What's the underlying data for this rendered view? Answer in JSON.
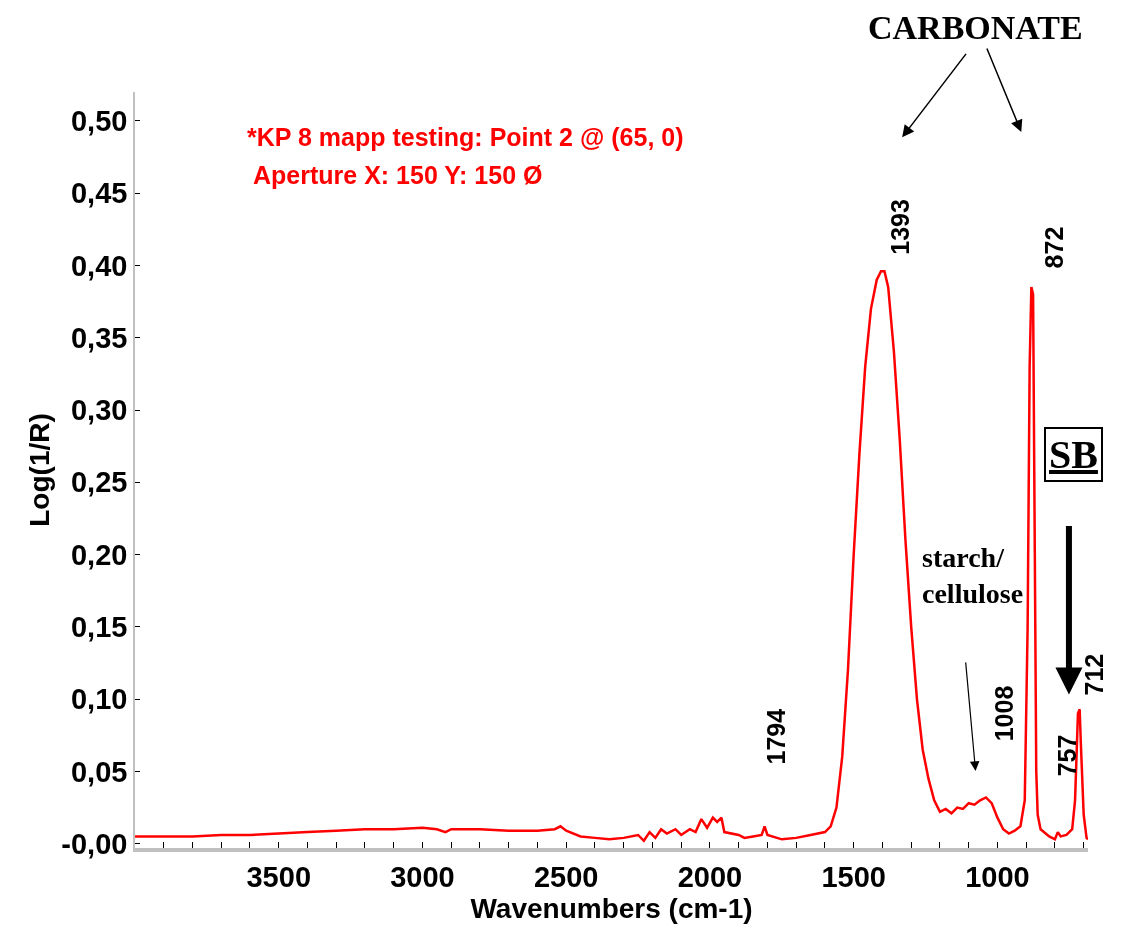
{
  "chart_data": {
    "type": "line",
    "title": "*KP 8 mapp testing: Point 2 @ (65, 0)",
    "subtitle": "Aperture X: 150 Y: 150 Ø",
    "xlabel": "Wavenumbers (cm-1)",
    "ylabel": "Log(1/R)",
    "xlim": [
      4000,
      685
    ],
    "ylim": [
      -0.003,
      0.52
    ],
    "grid": false,
    "marker": "none",
    "line_style": "solid",
    "xticks": [
      {
        "value": 3900,
        "label": null
      },
      {
        "value": 3800,
        "label": null
      },
      {
        "value": 3700,
        "label": null
      },
      {
        "value": 3600,
        "label": null
      },
      3500,
      {
        "value": 3400,
        "label": null
      },
      {
        "value": 3300,
        "label": null
      },
      {
        "value": 3200,
        "label": null
      },
      {
        "value": 3100,
        "label": null
      },
      3000,
      {
        "value": 2900,
        "label": null
      },
      {
        "value": 2800,
        "label": null
      },
      {
        "value": 2700,
        "label": null
      },
      {
        "value": 2600,
        "label": null
      },
      2500,
      {
        "value": 2400,
        "label": null
      },
      {
        "value": 2300,
        "label": null
      },
      {
        "value": 2200,
        "label": null
      },
      {
        "value": 2100,
        "label": null
      },
      2000,
      {
        "value": 1900,
        "label": null
      },
      {
        "value": 1800,
        "label": null
      },
      {
        "value": 1700,
        "label": null
      },
      {
        "value": 1600,
        "label": null
      },
      1500,
      {
        "value": 1400,
        "label": null
      },
      {
        "value": 1300,
        "label": null
      },
      {
        "value": 1200,
        "label": null
      },
      {
        "value": 1100,
        "label": null
      },
      1000,
      {
        "value": 900,
        "label": null
      },
      {
        "value": 800,
        "label": null
      },
      {
        "value": 700,
        "label": null
      }
    ],
    "yticks": [
      {
        "value": 0,
        "label": "-0,00"
      },
      {
        "value": 0.05,
        "label": "0,05"
      },
      {
        "value": 0.1,
        "label": "0,10"
      },
      {
        "value": 0.15,
        "label": "0,15"
      },
      {
        "value": 0.2,
        "label": "0,20"
      },
      {
        "value": 0.25,
        "label": "0,25"
      },
      {
        "value": 0.3,
        "label": "0,30"
      },
      {
        "value": 0.35,
        "label": "0,35"
      },
      {
        "value": 0.4,
        "label": "0,40"
      },
      {
        "value": 0.45,
        "label": "0,45"
      },
      {
        "value": 0.5,
        "label": "0,50"
      }
    ],
    "annotations": [
      "CARBONATE",
      "starch/\ncellulose",
      "SB",
      {
        "text": "1393",
        "x": 1393,
        "y": 0.396
      },
      {
        "text": "872",
        "x": 872,
        "y": 0.385
      },
      {
        "text": "1794",
        "x": 1794,
        "y": 0.012
      },
      {
        "text": "1008",
        "x": 1008,
        "y": 0.028
      },
      {
        "text": "757",
        "x": 757,
        "y": 0.006
      },
      {
        "text": "712",
        "x": 712,
        "y": 0.093
      }
    ],
    "series": [
      {
        "color": "#ff0000",
        "x": [
          4000,
          3900,
          3800,
          3700,
          3600,
          3500,
          3400,
          3300,
          3200,
          3100,
          3000,
          2950,
          2920,
          2900,
          2800,
          2700,
          2600,
          2540,
          2520,
          2500,
          2450,
          2400,
          2350,
          2300,
          2250,
          2230,
          2210,
          2190,
          2170,
          2150,
          2120,
          2100,
          2070,
          2050,
          2030,
          2010,
          1990,
          1975,
          1960,
          1950,
          1900,
          1880,
          1850,
          1820,
          1810,
          1800,
          1750,
          1700,
          1650,
          1600,
          1580,
          1560,
          1540,
          1520,
          1500,
          1480,
          1460,
          1440,
          1420,
          1405,
          1393,
          1380,
          1360,
          1340,
          1320,
          1300,
          1280,
          1260,
          1240,
          1220,
          1200,
          1180,
          1160,
          1140,
          1120,
          1100,
          1080,
          1060,
          1040,
          1020,
          1000,
          980,
          960,
          940,
          920,
          905,
          895,
          888,
          882,
          876,
          870,
          865,
          860,
          850,
          820,
          800,
          790,
          780,
          760,
          740,
          730,
          720,
          714,
          710,
          700,
          690,
          685
        ],
        "values": [
          0.005,
          0.005,
          0.005,
          0.006,
          0.006,
          0.007,
          0.008,
          0.009,
          0.01,
          0.01,
          0.011,
          0.01,
          0.008,
          0.01,
          0.01,
          0.009,
          0.009,
          0.01,
          0.012,
          0.009,
          0.005,
          0.004,
          0.003,
          0.004,
          0.006,
          0.002,
          0.008,
          0.004,
          0.01,
          0.007,
          0.01,
          0.006,
          0.01,
          0.008,
          0.017,
          0.011,
          0.018,
          0.015,
          0.018,
          0.008,
          0.006,
          0.004,
          0.005,
          0.006,
          0.012,
          0.006,
          0.003,
          0.004,
          0.006,
          0.008,
          0.012,
          0.025,
          0.06,
          0.12,
          0.2,
          0.27,
          0.33,
          0.37,
          0.39,
          0.396,
          0.396,
          0.385,
          0.34,
          0.28,
          0.21,
          0.15,
          0.1,
          0.065,
          0.045,
          0.03,
          0.022,
          0.024,
          0.021,
          0.025,
          0.024,
          0.028,
          0.027,
          0.03,
          0.032,
          0.028,
          0.018,
          0.01,
          0.007,
          0.009,
          0.012,
          0.03,
          0.15,
          0.33,
          0.385,
          0.38,
          0.2,
          0.05,
          0.02,
          0.01,
          0.005,
          0.003,
          0.008,
          0.005,
          0.006,
          0.01,
          0.03,
          0.09,
          0.093,
          0.07,
          0.02,
          0.004,
          0.003
        ]
      }
    ]
  }
}
